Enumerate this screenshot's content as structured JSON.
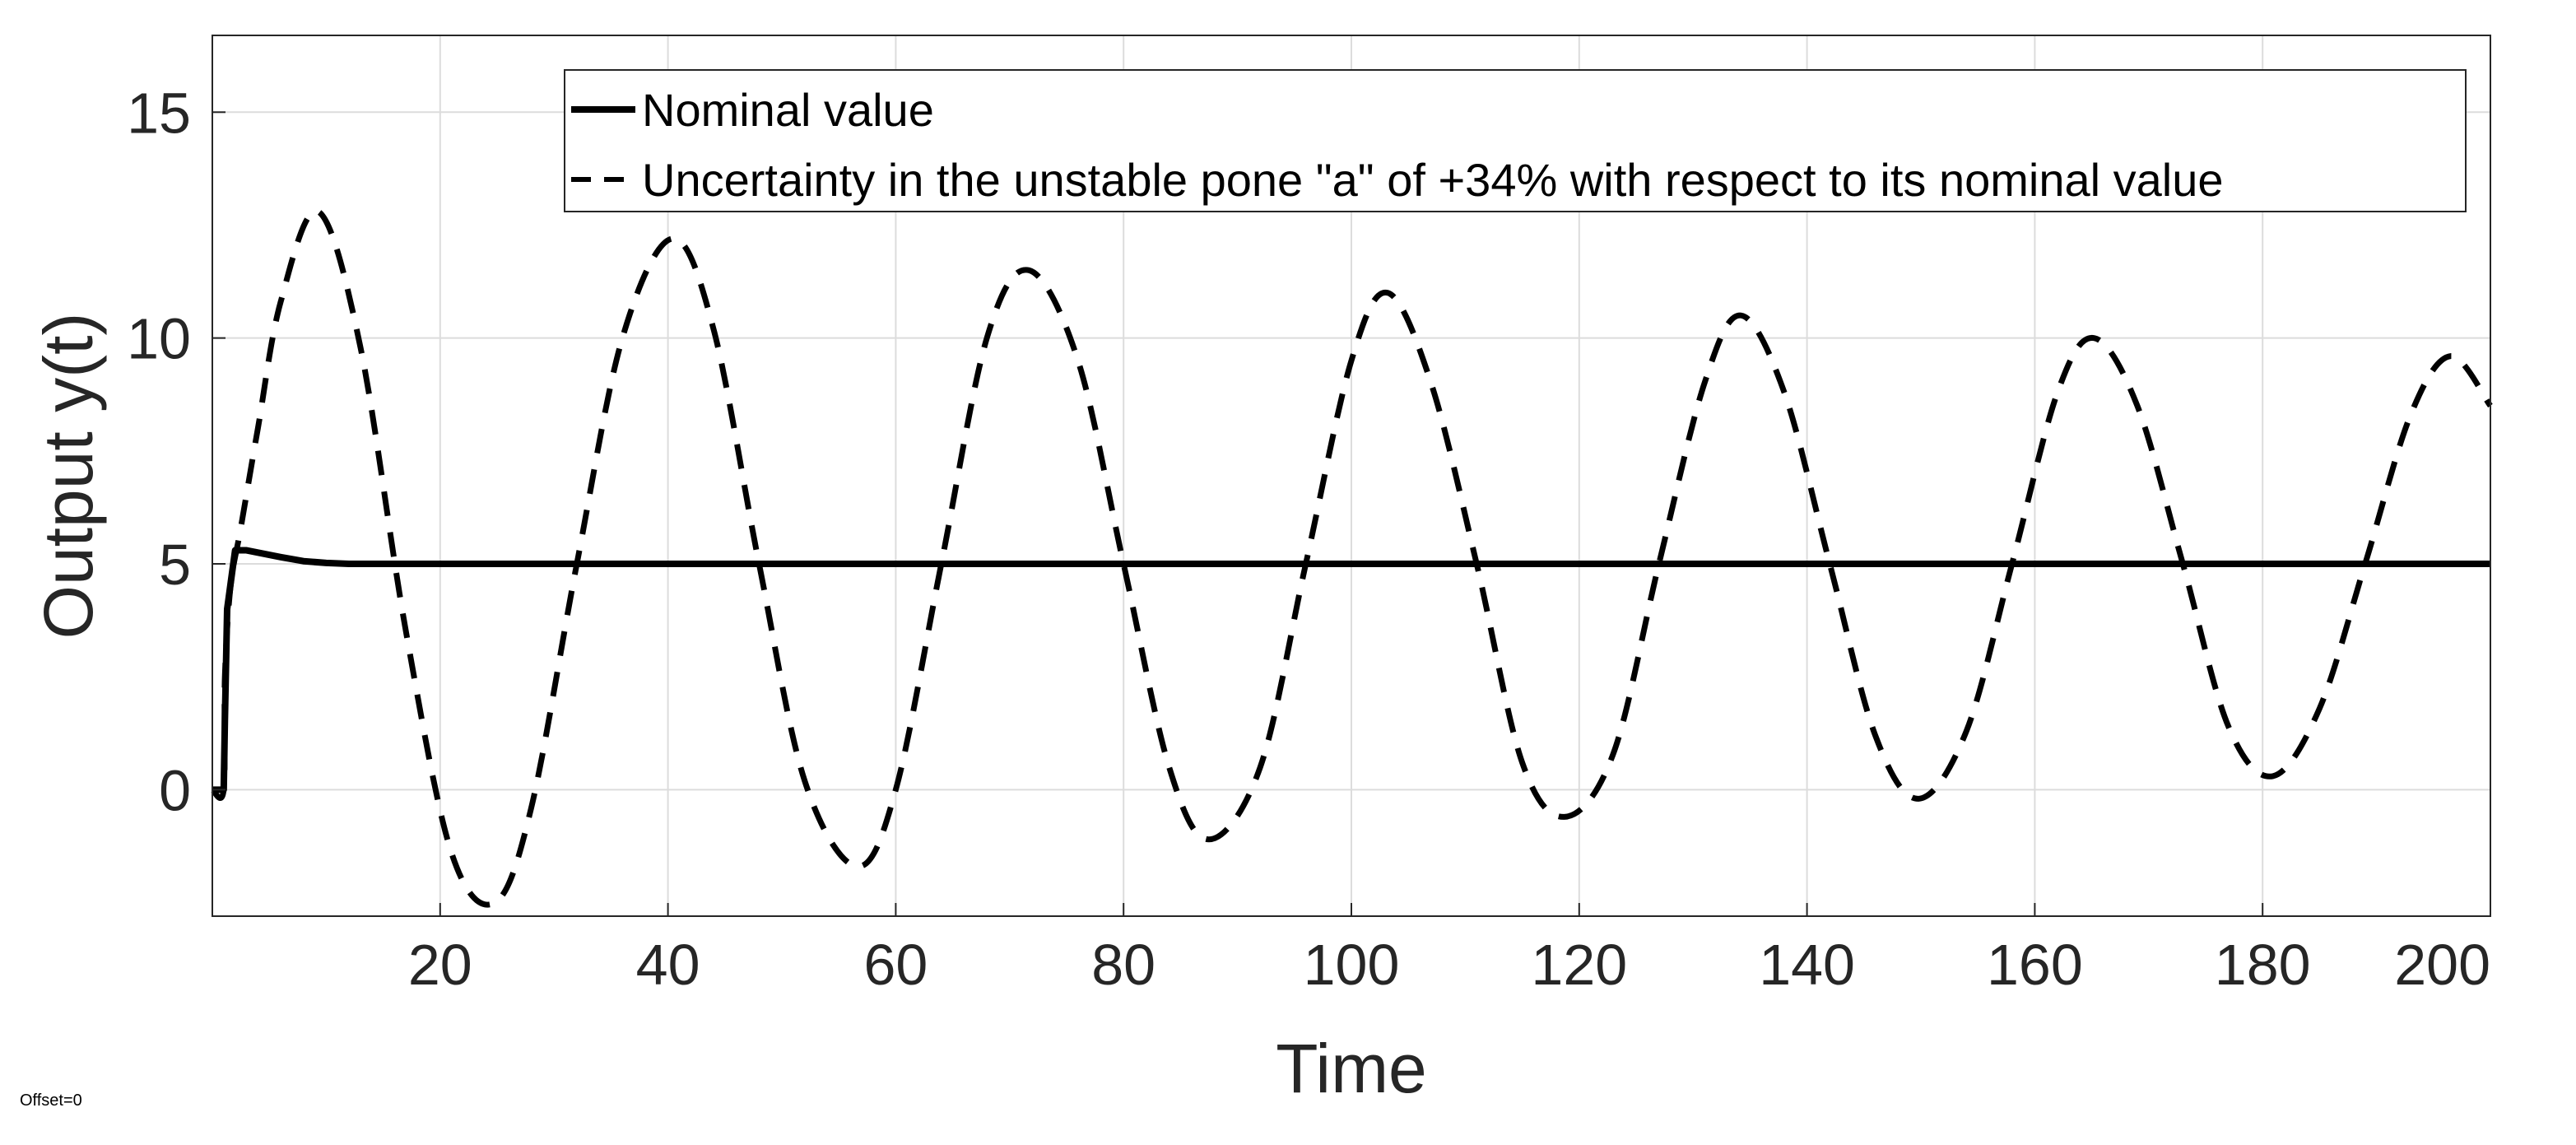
{
  "chart_data": {
    "type": "line",
    "title": "",
    "xlabel": "Time",
    "ylabel": "Output y(t)",
    "xlim": [
      0,
      200
    ],
    "ylim": [
      -2.8,
      16.7
    ],
    "xticks": [
      20,
      40,
      60,
      80,
      100,
      120,
      140,
      160,
      180,
      200
    ],
    "yticks": [
      0,
      5,
      10,
      15
    ],
    "grid": true,
    "legend_position": "top-center",
    "offset_note": "Offset=0",
    "series": [
      {
        "name": "Nominal value",
        "style": "solid",
        "color": "#000000",
        "x": [
          0,
          1,
          1.1,
          1.3,
          2,
          3,
          4,
          6,
          8,
          10,
          12,
          15,
          20,
          40,
          60,
          80,
          100,
          120,
          140,
          160,
          180,
          200
        ],
        "y": [
          0,
          0,
          1.5,
          4.0,
          5.3,
          5.3,
          5.25,
          5.15,
          5.06,
          5.02,
          5.0,
          5.0,
          5.0,
          5.0,
          5.0,
          5.0,
          5.0,
          5.0,
          5.0,
          5.0,
          5.0,
          5.0
        ]
      },
      {
        "name": "Uncertainty in the unstable pone \"a\" of +34% with respect to its nominal value",
        "style": "dashed",
        "color": "#000000",
        "x": [
          0,
          1,
          1.1,
          1.6,
          2.5,
          4,
          6,
          9.3,
          13,
          17,
          21,
          24.8,
          28,
          32,
          36,
          40.4,
          44,
          48,
          52,
          56.6,
          60,
          64,
          68,
          71.7,
          76,
          80,
          84,
          87.5,
          92,
          96,
          100,
          103.2,
          107,
          111,
          115,
          118.8,
          123,
          127,
          131,
          134.2,
          138,
          142,
          146,
          149.8,
          154,
          158,
          162,
          165.2,
          169,
          173,
          177,
          180.9,
          185,
          189,
          193,
          196.5,
          200
        ],
        "y": [
          0,
          0,
          2.5,
          4.5,
          5.8,
          8.0,
          10.8,
          12.8,
          9.8,
          3.5,
          -1.4,
          -2.5,
          -0.4,
          5.0,
          10.0,
          12.2,
          10.2,
          5.0,
          0.2,
          -1.7,
          0.0,
          5.0,
          10.0,
          11.5,
          9.5,
          5.0,
          0.5,
          -1.1,
          0.5,
          5.0,
          9.5,
          11.0,
          9.0,
          5.0,
          0.6,
          -0.6,
          0.8,
          5.0,
          9.0,
          10.5,
          8.8,
          5.0,
          1.2,
          -0.2,
          1.3,
          5.0,
          8.8,
          10.0,
          8.5,
          5.0,
          1.4,
          0.3,
          1.8,
          5.0,
          8.3,
          9.6,
          8.5
        ]
      }
    ]
  }
}
